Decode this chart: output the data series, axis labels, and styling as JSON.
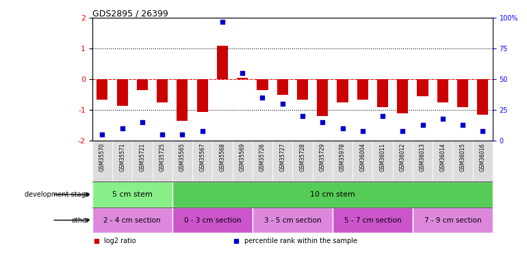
{
  "title": "GDS2895 / 26399",
  "samples": [
    "GSM35570",
    "GSM35571",
    "GSM35721",
    "GSM35725",
    "GSM35565",
    "GSM35567",
    "GSM35568",
    "GSM35569",
    "GSM35726",
    "GSM35727",
    "GSM35728",
    "GSM35729",
    "GSM35978",
    "GSM36004",
    "GSM36011",
    "GSM36012",
    "GSM36013",
    "GSM36014",
    "GSM36015",
    "GSM36016"
  ],
  "log2_ratio": [
    -0.65,
    -0.85,
    -0.35,
    -0.75,
    -1.35,
    -1.05,
    1.1,
    0.05,
    -0.35,
    -0.5,
    -0.65,
    -1.2,
    -0.75,
    -0.65,
    -0.9,
    -1.1,
    -0.55,
    -0.75,
    -0.9,
    -1.15
  ],
  "percentile": [
    5,
    10,
    15,
    5,
    5,
    8,
    97,
    55,
    35,
    30,
    20,
    15,
    10,
    8,
    20,
    8,
    13,
    18,
    13,
    8
  ],
  "bar_color": "#cc0000",
  "dot_color": "#0000cc",
  "ylim": [
    -2,
    2
  ],
  "y2lim": [
    0,
    100
  ],
  "yticks": [
    -2,
    -1,
    0,
    1,
    2
  ],
  "y2ticks": [
    0,
    25,
    50,
    75,
    100
  ],
  "hlines": [
    -1,
    0,
    1
  ],
  "hline_colors": [
    "black",
    "red",
    "black"
  ],
  "hline_styles": [
    "dotted",
    "dashed",
    "dotted"
  ],
  "dev_stage_groups": [
    {
      "label": "5 cm stem",
      "start": 0,
      "end": 3,
      "color": "#88ee88"
    },
    {
      "label": "10 cm stem",
      "start": 4,
      "end": 19,
      "color": "#55cc55"
    }
  ],
  "other_groups": [
    {
      "label": "2 - 4 cm section",
      "start": 0,
      "end": 3,
      "color": "#dd88dd"
    },
    {
      "label": "0 - 3 cm section",
      "start": 4,
      "end": 7,
      "color": "#cc55cc"
    },
    {
      "label": "3 - 5 cm section",
      "start": 8,
      "end": 11,
      "color": "#dd88dd"
    },
    {
      "label": "5 - 7 cm section",
      "start": 12,
      "end": 15,
      "color": "#cc55cc"
    },
    {
      "label": "7 - 9 cm section",
      "start": 16,
      "end": 19,
      "color": "#dd88dd"
    }
  ],
  "legend_items": [
    {
      "label": "log2 ratio",
      "color": "#cc0000"
    },
    {
      "label": "percentile rank within the sample",
      "color": "#0000cc"
    }
  ],
  "bar_width": 0.55,
  "dot_size": 25,
  "tick_label_bg": "#dddddd"
}
